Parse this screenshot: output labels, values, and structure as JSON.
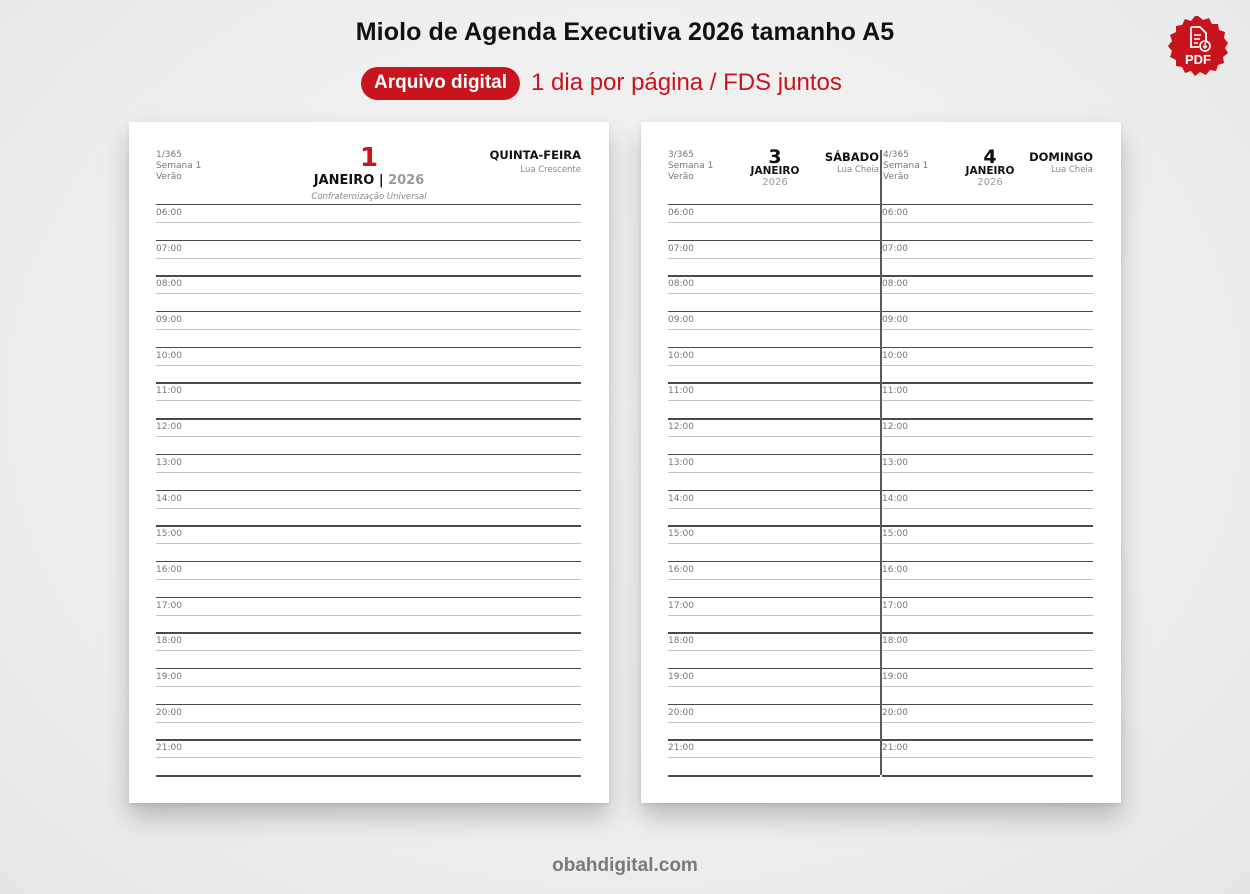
{
  "header": {
    "title": "Miolo de Agenda Executiva 2026 tamanho A5",
    "badge": "Arquivo digital",
    "subtitle": "1 dia por página / FDS juntos",
    "pdf_seal": {
      "icon": "file-download-icon",
      "label": "PDF"
    }
  },
  "colors": {
    "accent": "#c8141d",
    "text": "#111111",
    "muted": "#777777",
    "background": "#efefef"
  },
  "left_page": {
    "day_of_year": "1/365",
    "week": "Semana 1",
    "season": "Verão",
    "day_number": "1",
    "month": "JANEIRO",
    "separator": "|",
    "year": "2026",
    "holiday": "Confraternização Universal",
    "weekday": "QUINTA-FEIRA",
    "moon": "Lua Crescente",
    "hours": [
      "06:00",
      "07:00",
      "08:00",
      "09:00",
      "10:00",
      "11:00",
      "12:00",
      "13:00",
      "14:00",
      "15:00",
      "16:00",
      "17:00",
      "18:00",
      "19:00",
      "20:00",
      "21:00"
    ]
  },
  "right_page": {
    "saturday": {
      "day_of_year": "3/365",
      "week": "Semana 1",
      "season": "Verão",
      "day_number": "3",
      "month": "JANEIRO",
      "year": "2026",
      "weekday": "SÁBADO",
      "moon": "Lua Cheia",
      "hours": [
        "06:00",
        "07:00",
        "08:00",
        "09:00",
        "10:00",
        "11:00",
        "12:00",
        "13:00",
        "14:00",
        "15:00",
        "16:00",
        "17:00",
        "18:00",
        "19:00",
        "20:00",
        "21:00"
      ]
    },
    "sunday": {
      "day_of_year": "4/365",
      "week": "Semana 1",
      "season": "Verão",
      "day_number": "4",
      "month": "JANEIRO",
      "year": "2026",
      "weekday": "DOMINGO",
      "moon": "Lua Cheia",
      "hours": [
        "06:00",
        "07:00",
        "08:00",
        "09:00",
        "10:00",
        "11:00",
        "12:00",
        "13:00",
        "14:00",
        "15:00",
        "16:00",
        "17:00",
        "18:00",
        "19:00",
        "20:00",
        "21:00"
      ]
    }
  },
  "footer": {
    "website": "obahdigital.com"
  }
}
